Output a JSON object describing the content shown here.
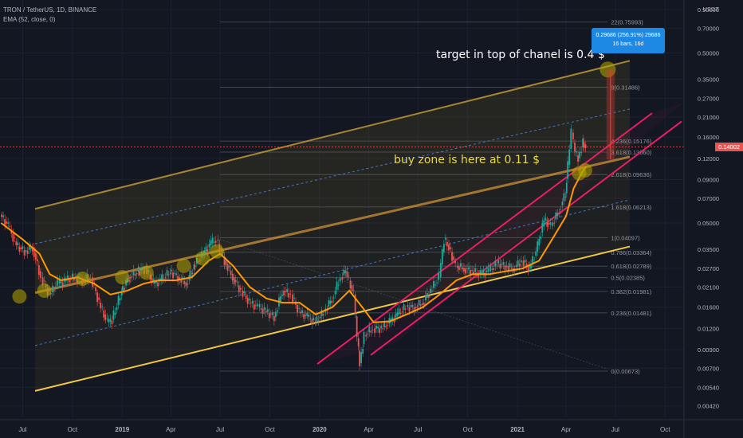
{
  "header": {
    "symbol": "TRON / TetherUS, 1D, BINANCE",
    "indicator": "EMA (52, close, 0)"
  },
  "annotations": {
    "target": "target in top of chanel is 0.4 $",
    "buy_zone": "buy zone is here at 0.11 $"
  },
  "measure_tooltip": {
    "line1": "0.29686 (256.91%) 29686",
    "line2": "16 bars, 16d"
  },
  "colors": {
    "background": "#131722",
    "price_line": "#ef5350",
    "ema": "#ff9800",
    "up_candle": "#26a69a",
    "down_candle": "#ef5350",
    "channel_upper": "#d4a93a",
    "channel_mid": "#e8a33a",
    "channel_lower": "#f5c842",
    "channel_dashed": "#4a7fd8",
    "rising_channel": "#e91e63",
    "fib_line": "#787b86",
    "measure_box": "#1e88e5"
  },
  "chart_data": {
    "type": "line",
    "title": "TRON / TetherUS, 1D, BINANCE",
    "yscale": "log",
    "ylim": [
      0.0036,
      0.92
    ],
    "xlim": [
      "2018-05-20",
      "2021-11-05"
    ],
    "y_axis_unit": "USDT",
    "x_tick_labels": [
      {
        "label": "Jul",
        "date": "2018-07-01"
      },
      {
        "label": "Oct",
        "date": "2018-10-01"
      },
      {
        "label": "2019",
        "date": "2019-01-01"
      },
      {
        "label": "Apr",
        "date": "2019-04-01"
      },
      {
        "label": "Jul",
        "date": "2019-07-01"
      },
      {
        "label": "Oct",
        "date": "2019-10-01"
      },
      {
        "label": "2020",
        "date": "2020-01-01"
      },
      {
        "label": "Apr",
        "date": "2020-04-01"
      },
      {
        "label": "Jul",
        "date": "2020-07-01"
      },
      {
        "label": "Oct",
        "date": "2020-10-01"
      },
      {
        "label": "2021",
        "date": "2021-01-01"
      },
      {
        "label": "Apr",
        "date": "2021-04-01"
      },
      {
        "label": "Jul",
        "date": "2021-07-01"
      },
      {
        "label": "Oct",
        "date": "2021-10-01"
      }
    ],
    "y_tick_labels": [
      {
        "label": "0.90000",
        "value": 0.9
      },
      {
        "label": "0.70000",
        "value": 0.7
      },
      {
        "label": "0.50000",
        "value": 0.5
      },
      {
        "label": "0.35000",
        "value": 0.35
      },
      {
        "label": "0.27000",
        "value": 0.27
      },
      {
        "label": "0.21000",
        "value": 0.21
      },
      {
        "label": "0.16000",
        "value": 0.16
      },
      {
        "label": "0.12000",
        "value": 0.12
      },
      {
        "label": "0.09000",
        "value": 0.09
      },
      {
        "label": "0.07000",
        "value": 0.07
      },
      {
        "label": "0.05000",
        "value": 0.05
      },
      {
        "label": "0.03500",
        "value": 0.035
      },
      {
        "label": "0.02700",
        "value": 0.027
      },
      {
        "label": "0.02100",
        "value": 0.021
      },
      {
        "label": "0.01600",
        "value": 0.016
      },
      {
        "label": "0.01200",
        "value": 0.012
      },
      {
        "label": "0.00900",
        "value": 0.009
      },
      {
        "label": "0.00700",
        "value": 0.007
      },
      {
        "label": "0.00540",
        "value": 0.0054
      },
      {
        "label": "0.00420",
        "value": 0.0042
      }
    ],
    "current_price": {
      "label": "0.14002",
      "value": 0.14002
    },
    "fib_levels": [
      {
        "label": "22(0.75993)",
        "value": 0.75993
      },
      {
        "label": "9(0.31486)",
        "value": 0.31486
      },
      {
        "label": "4.236(0.15176)",
        "value": 0.15176
      },
      {
        "label": "3.618(0.13060)",
        "value": 0.1306
      },
      {
        "label": "2.618(0.09636)",
        "value": 0.09636
      },
      {
        "label": "1.618(0.06213)",
        "value": 0.06213
      },
      {
        "label": "1(0.04097)",
        "value": 0.04097
      },
      {
        "label": "0.786(0.03364)",
        "value": 0.03364
      },
      {
        "label": "0.618(0.02789)",
        "value": 0.02789
      },
      {
        "label": "0.5(0.02385)",
        "value": 0.02385
      },
      {
        "label": "0.382(0.01981)",
        "value": 0.01981
      },
      {
        "label": "0.236(0.01481)",
        "value": 0.01481
      },
      {
        "label": "0(0.00673)",
        "value": 0.00673
      }
    ],
    "fib_start_date": "2019-07-01",
    "fib_end_date": "2021-06-17",
    "series": [
      {
        "name": "TRON / TetherUS",
        "points": [
          [
            "2018-05-22",
            0.056
          ],
          [
            "2018-06-05",
            0.048
          ],
          [
            "2018-06-20",
            0.037
          ],
          [
            "2018-07-05",
            0.034
          ],
          [
            "2018-07-20",
            0.036
          ],
          [
            "2018-08-05",
            0.024
          ],
          [
            "2018-08-20",
            0.019
          ],
          [
            "2018-09-05",
            0.022
          ],
          [
            "2018-09-20",
            0.023
          ],
          [
            "2018-10-05",
            0.024
          ],
          [
            "2018-10-20",
            0.023
          ],
          [
            "2018-11-05",
            0.024
          ],
          [
            "2018-11-20",
            0.017
          ],
          [
            "2018-12-05",
            0.013
          ],
          [
            "2018-12-15",
            0.0135
          ],
          [
            "2019-01-01",
            0.02
          ],
          [
            "2019-01-15",
            0.024
          ],
          [
            "2019-02-01",
            0.026
          ],
          [
            "2019-02-15",
            0.027
          ],
          [
            "2019-03-01",
            0.022
          ],
          [
            "2019-03-15",
            0.023
          ],
          [
            "2019-04-01",
            0.026
          ],
          [
            "2019-04-15",
            0.024
          ],
          [
            "2019-05-01",
            0.022
          ],
          [
            "2019-05-15",
            0.028
          ],
          [
            "2019-06-01",
            0.033
          ],
          [
            "2019-06-15",
            0.038
          ],
          [
            "2019-06-25",
            0.04
          ],
          [
            "2019-07-10",
            0.03
          ],
          [
            "2019-07-25",
            0.024
          ],
          [
            "2019-08-10",
            0.02
          ],
          [
            "2019-08-25",
            0.017
          ],
          [
            "2019-09-10",
            0.016
          ],
          [
            "2019-09-25",
            0.015
          ],
          [
            "2019-10-10",
            0.014
          ],
          [
            "2019-10-25",
            0.02
          ],
          [
            "2019-11-10",
            0.019
          ],
          [
            "2019-11-25",
            0.015
          ],
          [
            "2019-12-10",
            0.014
          ],
          [
            "2019-12-25",
            0.013
          ],
          [
            "2020-01-10",
            0.015
          ],
          [
            "2020-01-25",
            0.018
          ],
          [
            "2020-02-10",
            0.024
          ],
          [
            "2020-02-20",
            0.026
          ],
          [
            "2020-03-05",
            0.019
          ],
          [
            "2020-03-12",
            0.0105
          ],
          [
            "2020-03-16",
            0.0075
          ],
          [
            "2020-03-25",
            0.011
          ],
          [
            "2020-04-10",
            0.012
          ],
          [
            "2020-04-25",
            0.012
          ],
          [
            "2020-05-10",
            0.013
          ],
          [
            "2020-05-25",
            0.0145
          ],
          [
            "2020-06-10",
            0.016
          ],
          [
            "2020-06-25",
            0.016
          ],
          [
            "2020-07-10",
            0.017
          ],
          [
            "2020-07-25",
            0.02
          ],
          [
            "2020-08-10",
            0.024
          ],
          [
            "2020-08-20",
            0.04
          ],
          [
            "2020-08-28",
            0.036
          ],
          [
            "2020-09-10",
            0.028
          ],
          [
            "2020-09-25",
            0.027
          ],
          [
            "2020-10-10",
            0.026
          ],
          [
            "2020-10-25",
            0.025
          ],
          [
            "2020-11-10",
            0.026
          ],
          [
            "2020-11-25",
            0.029
          ],
          [
            "2020-12-10",
            0.028
          ],
          [
            "2020-12-25",
            0.027
          ],
          [
            "2021-01-10",
            0.03
          ],
          [
            "2021-01-25",
            0.027
          ],
          [
            "2021-02-05",
            0.034
          ],
          [
            "2021-02-20",
            0.052
          ],
          [
            "2021-03-05",
            0.048
          ],
          [
            "2021-03-20",
            0.06
          ],
          [
            "2021-04-01",
            0.075
          ],
          [
            "2021-04-05",
            0.11
          ],
          [
            "2021-04-12",
            0.17
          ],
          [
            "2021-04-18",
            0.13
          ],
          [
            "2021-04-25",
            0.12
          ],
          [
            "2021-05-03",
            0.15
          ],
          [
            "2021-05-08",
            0.14
          ]
        ]
      },
      {
        "name": "EMA (52, close, 0)",
        "points": [
          [
            "2018-05-22",
            0.05
          ],
          [
            "2018-07-01",
            0.04
          ],
          [
            "2018-08-01",
            0.033
          ],
          [
            "2018-08-20",
            0.025
          ],
          [
            "2018-09-10",
            0.023
          ],
          [
            "2018-10-10",
            0.024
          ],
          [
            "2018-11-10",
            0.022
          ],
          [
            "2018-12-10",
            0.019
          ],
          [
            "2019-01-10",
            0.02
          ],
          [
            "2019-02-10",
            0.022
          ],
          [
            "2019-03-10",
            0.023
          ],
          [
            "2019-04-10",
            0.023
          ],
          [
            "2019-05-10",
            0.024
          ],
          [
            "2019-06-10",
            0.03
          ],
          [
            "2019-07-01",
            0.033
          ],
          [
            "2019-07-25",
            0.028
          ],
          [
            "2019-08-25",
            0.021
          ],
          [
            "2019-09-25",
            0.018
          ],
          [
            "2019-10-25",
            0.017
          ],
          [
            "2019-11-25",
            0.017
          ],
          [
            "2019-12-25",
            0.0145
          ],
          [
            "2020-01-25",
            0.016
          ],
          [
            "2020-02-25",
            0.02
          ],
          [
            "2020-03-20",
            0.016
          ],
          [
            "2020-04-10",
            0.013
          ],
          [
            "2020-05-10",
            0.0132
          ],
          [
            "2020-06-10",
            0.0145
          ],
          [
            "2020-07-10",
            0.016
          ],
          [
            "2020-08-10",
            0.019
          ],
          [
            "2020-09-10",
            0.023
          ],
          [
            "2020-10-10",
            0.025
          ],
          [
            "2020-11-10",
            0.025
          ],
          [
            "2020-12-10",
            0.026
          ],
          [
            "2021-01-10",
            0.027
          ],
          [
            "2021-02-10",
            0.03
          ],
          [
            "2021-03-10",
            0.042
          ],
          [
            "2021-04-01",
            0.055
          ],
          [
            "2021-04-15",
            0.08
          ],
          [
            "2021-05-01",
            0.1
          ],
          [
            "2021-05-08",
            0.107
          ]
        ]
      }
    ]
  }
}
